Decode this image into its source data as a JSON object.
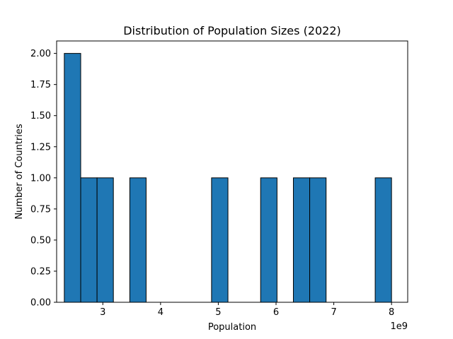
{
  "chart_data": {
    "type": "bar",
    "title": "Distribution of Population Sizes (2022)",
    "xlabel": "Population",
    "ylabel": "Number of Countries",
    "x_offset_label": "1e9",
    "xlim": [
      2.2,
      8.28
    ],
    "ylim": [
      0,
      2.1
    ],
    "bin_edges": [
      2.333,
      2.617,
      2.9,
      3.183,
      3.467,
      3.75,
      4.033,
      4.317,
      4.6,
      4.883,
      5.167,
      5.45,
      5.733,
      6.017,
      6.3,
      6.583,
      6.867,
      7.15,
      7.433,
      7.717,
      8.0
    ],
    "values": [
      2,
      1,
      1,
      0,
      1,
      0,
      0,
      0,
      0,
      1,
      0,
      0,
      1,
      0,
      1,
      1,
      0,
      0,
      0,
      1
    ],
    "x_ticks": [
      3,
      4,
      5,
      6,
      7,
      8
    ],
    "x_tick_labels": [
      "3",
      "4",
      "5",
      "6",
      "7",
      "8"
    ],
    "y_ticks": [
      0,
      0.25,
      0.5,
      0.75,
      1.0,
      1.25,
      1.5,
      1.75,
      2.0
    ],
    "y_tick_labels": [
      "0.00",
      "0.25",
      "0.50",
      "0.75",
      "1.00",
      "1.25",
      "1.50",
      "1.75",
      "2.00"
    ],
    "grid": false,
    "legend": "none",
    "colors": {
      "bar_fill": "#1f77b4",
      "bar_edge": "#000000"
    }
  }
}
